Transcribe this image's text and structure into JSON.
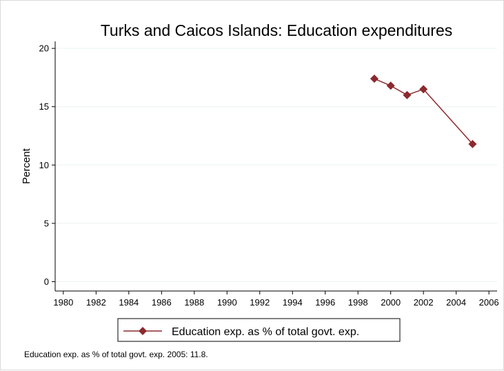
{
  "chart_data": {
    "type": "line",
    "title": "Turks and Caicos Islands: Education expenditures",
    "xlabel": "",
    "ylabel": "Percent",
    "xlim": [
      1979.5,
      2006.5
    ],
    "ylim": [
      -0.8,
      20.6
    ],
    "xticks": [
      "1980",
      "1982",
      "1984",
      "1986",
      "1988",
      "1990",
      "1992",
      "1994",
      "1996",
      "1998",
      "2000",
      "2002",
      "2004",
      "2006"
    ],
    "yticks": [
      "0",
      "5",
      "10",
      "15",
      "20"
    ],
    "grid": true,
    "legend_position": "bottom",
    "series": [
      {
        "name": "Education exp. as % of total govt. exp.",
        "color": "#8b2a2e",
        "marker": "diamond",
        "x": [
          1999,
          2000,
          2001,
          2002,
          2005
        ],
        "y": [
          17.4,
          16.8,
          16.0,
          16.5,
          11.8
        ]
      }
    ]
  },
  "note": "Education exp. as % of total govt. exp. 2005: 11.8."
}
